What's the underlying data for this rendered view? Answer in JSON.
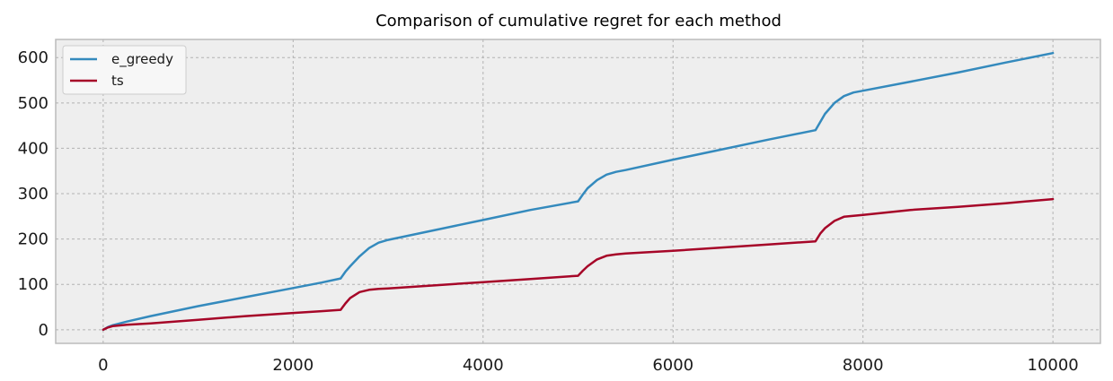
{
  "chart_data": {
    "type": "line",
    "title": "Comparison of cumulative regret for each method",
    "xlabel": "",
    "ylabel": "",
    "xlim": [
      -500,
      10500
    ],
    "ylim": [
      -30,
      640
    ],
    "xticks": [
      0,
      2000,
      4000,
      6000,
      8000,
      10000
    ],
    "yticks": [
      0,
      100,
      200,
      300,
      400,
      500,
      600
    ],
    "grid": true,
    "legend_position": "top-left",
    "series": [
      {
        "name": "e_greedy",
        "color": "#348ABD",
        "x": [
          0,
          50,
          100,
          250,
          500,
          1000,
          1500,
          2000,
          2300,
          2500,
          2550,
          2600,
          2700,
          2800,
          2900,
          3000,
          3500,
          4000,
          4500,
          5000,
          5050,
          5100,
          5200,
          5300,
          5400,
          5500,
          6000,
          6500,
          7000,
          7500,
          7550,
          7600,
          7700,
          7800,
          7900,
          8000,
          8500,
          9000,
          9500,
          10000
        ],
        "values": [
          0,
          6,
          10,
          18,
          30,
          52,
          72,
          92,
          104,
          113,
          128,
          140,
          162,
          180,
          192,
          198,
          220,
          242,
          264,
          283,
          298,
          312,
          330,
          342,
          348,
          352,
          375,
          397,
          419,
          440,
          458,
          476,
          500,
          515,
          523,
          527,
          547,
          567,
          589,
          610
        ]
      },
      {
        "name": "ts",
        "color": "#A60628",
        "x": [
          0,
          50,
          100,
          250,
          500,
          1000,
          1500,
          2000,
          2300,
          2500,
          2550,
          2600,
          2700,
          2800,
          2900,
          3000,
          3500,
          4000,
          4500,
          5000,
          5050,
          5100,
          5200,
          5300,
          5400,
          5500,
          6000,
          6500,
          7000,
          7500,
          7550,
          7600,
          7700,
          7800,
          7900,
          8000,
          8500,
          9000,
          9500,
          10000
        ],
        "values": [
          0,
          5,
          8,
          11,
          14,
          22,
          30,
          37,
          41,
          44,
          58,
          70,
          83,
          88,
          90,
          91,
          98,
          105,
          112,
          119,
          130,
          140,
          155,
          163,
          166,
          168,
          174,
          181,
          188,
          195,
          212,
          224,
          240,
          249,
          251,
          253,
          264,
          271,
          279,
          288
        ]
      }
    ]
  }
}
